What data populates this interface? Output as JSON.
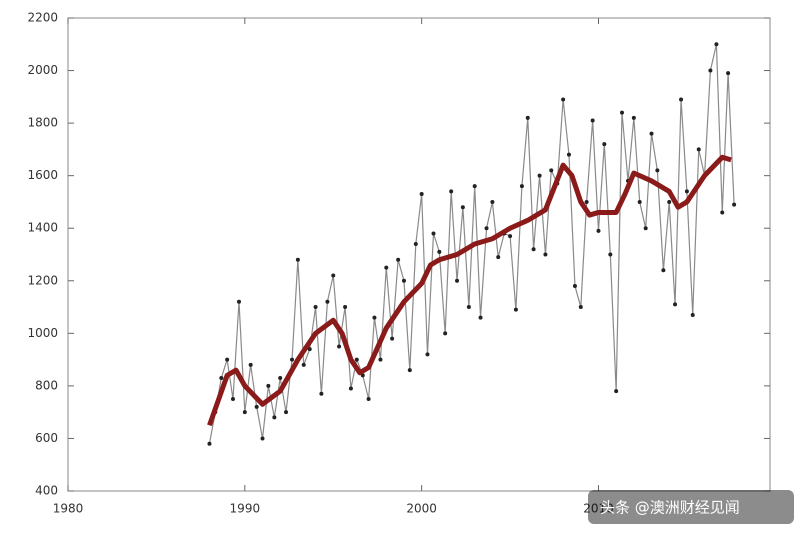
{
  "chart_data": {
    "type": "line",
    "watermark": "头条 @澳洲财经见闻",
    "xlim": [
      1980,
      2019.7
    ],
    "xticks": [
      1980,
      1990,
      2000,
      2010
    ],
    "ylim": [
      400,
      2200
    ],
    "yticks": [
      400,
      600,
      800,
      1000,
      1200,
      1400,
      1600,
      1800,
      2000,
      2200
    ],
    "series": [
      {
        "color": "#8a8a8a",
        "marker_color": "#222222",
        "x": [
          1988,
          1988.33,
          1988.67,
          1989,
          1989.33,
          1989.67,
          1990,
          1990.33,
          1990.67,
          1991,
          1991.33,
          1991.67,
          1992,
          1992.33,
          1992.67,
          1993,
          1993.33,
          1993.67,
          1994,
          1994.33,
          1994.67,
          1995,
          1995.33,
          1995.67,
          1996,
          1996.33,
          1996.67,
          1997,
          1997.33,
          1997.67,
          1998,
          1998.33,
          1998.67,
          1999,
          1999.33,
          1999.67,
          2000,
          2000.33,
          2000.67,
          2001,
          2001.33,
          2001.67,
          2002,
          2002.33,
          2002.67,
          2003,
          2003.33,
          2003.67,
          2004,
          2004.33,
          2004.67,
          2005,
          2005.33,
          2005.67,
          2006,
          2006.33,
          2006.67,
          2007,
          2007.33,
          2007.67,
          2008,
          2008.33,
          2008.67,
          2009,
          2009.33,
          2009.67,
          2010,
          2010.33,
          2010.67,
          2011,
          2011.33,
          2011.67,
          2012,
          2012.33,
          2012.67,
          2013,
          2013.33,
          2013.67,
          2014,
          2014.33,
          2014.67,
          2015,
          2015.33,
          2015.67,
          2016,
          2016.33,
          2016.67,
          2017,
          2017.33,
          2017.67
        ],
        "values": [
          580,
          700,
          830,
          900,
          750,
          1120,
          700,
          880,
          720,
          600,
          800,
          680,
          830,
          700,
          900,
          1280,
          880,
          940,
          1100,
          770,
          1120,
          1220,
          950,
          1100,
          790,
          900,
          840,
          750,
          1060,
          900,
          1250,
          980,
          1280,
          1200,
          860,
          1340,
          1530,
          920,
          1380,
          1310,
          1000,
          1540,
          1200,
          1480,
          1100,
          1560,
          1060,
          1400,
          1500,
          1290,
          1380,
          1370,
          1090,
          1560,
          1820,
          1320,
          1600,
          1300,
          1620,
          1570,
          1890,
          1680,
          1180,
          1100,
          1500,
          1810,
          1390,
          1720,
          1300,
          780,
          1840,
          1580,
          1820,
          1500,
          1400,
          1760,
          1620,
          1240,
          1500,
          1110,
          1890,
          1540,
          1070,
          1700,
          1600,
          2000,
          2100,
          1460,
          1990,
          1490
        ]
      },
      {
        "color": "#8b1a1a",
        "x": [
          1988,
          1989,
          1989.5,
          1990,
          1991,
          1992,
          1993,
          1994,
          1995,
          1995.5,
          1996,
          1996.5,
          1997,
          1998,
          1999,
          2000,
          2000.5,
          2001,
          2002,
          2003,
          2004,
          2005,
          2006,
          2007,
          2008,
          2008.5,
          2009,
          2009.5,
          2010,
          2011,
          2011.5,
          2012,
          2013,
          2014,
          2014.5,
          2015,
          2016,
          2017,
          2017.5
        ],
        "values": [
          650,
          840,
          860,
          800,
          730,
          780,
          900,
          1000,
          1050,
          1000,
          900,
          850,
          870,
          1020,
          1120,
          1190,
          1260,
          1280,
          1300,
          1340,
          1360,
          1400,
          1430,
          1470,
          1640,
          1600,
          1500,
          1450,
          1460,
          1460,
          1530,
          1610,
          1580,
          1540,
          1480,
          1500,
          1600,
          1670,
          1660
        ]
      }
    ]
  }
}
